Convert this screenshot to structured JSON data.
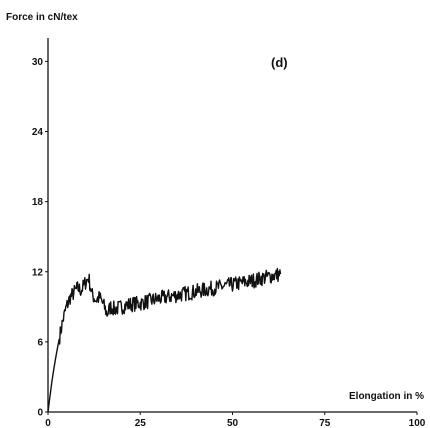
{
  "chart_data": {
    "type": "line",
    "title": "",
    "panel_label": "(d)",
    "ylabel": "Force in cN/tex",
    "xlabel": "Elongation in %",
    "xlim": [
      0,
      100
    ],
    "ylim": [
      0,
      32
    ],
    "x_ticks": [
      0,
      25,
      50,
      75,
      100
    ],
    "y_ticks": [
      0,
      6,
      12,
      18,
      24,
      30
    ],
    "grid": false,
    "series": [
      {
        "noisy": true,
        "x": [
          0,
          1,
          2,
          3,
          4,
          5,
          6,
          7,
          8,
          9,
          10,
          11,
          12,
          13,
          14,
          15,
          16,
          17,
          18,
          20,
          22,
          25,
          30,
          35,
          40,
          45,
          50,
          55,
          60,
          63
        ],
        "y": [
          0,
          2.5,
          4.5,
          6.2,
          7.8,
          9.0,
          9.8,
          10.2,
          10.6,
          10.4,
          11.0,
          11.5,
          10.0,
          9.6,
          9.8,
          9.2,
          8.4,
          9.0,
          8.8,
          9.0,
          9.2,
          9.3,
          9.7,
          10.0,
          10.3,
          10.6,
          10.9,
          11.2,
          11.6,
          11.8
        ]
      }
    ]
  }
}
